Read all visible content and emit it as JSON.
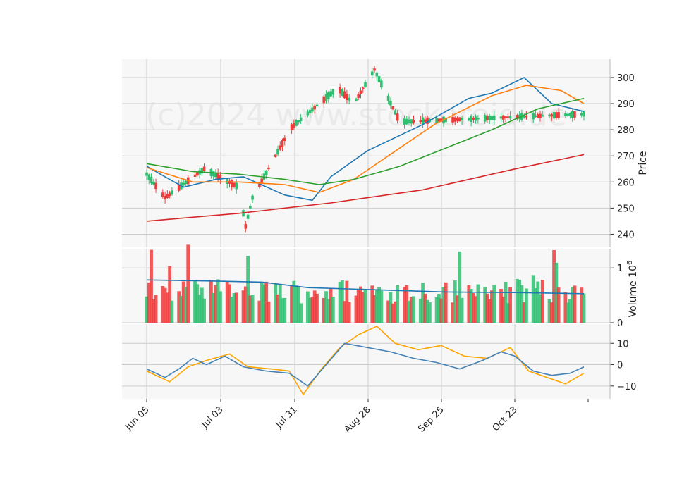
{
  "watermark": "(c)2024 www.stockoroid.de",
  "colors": {
    "up": "#2fbf71",
    "down": "#f03b3b",
    "ma_short": "#1f77b4",
    "ma_mid": "#ff7f0e",
    "ma_long": "#2ca02c",
    "ma_very_long": "#d62728",
    "volume_ma": "#1f77b4",
    "osc_fast": "#4682b4",
    "osc_slow": "#ffa500",
    "panel_bg": "#f7f7f7",
    "grid": "#cccccc"
  },
  "chart_data": {
    "type": "candlestick",
    "x_tick_labels": [
      "Jun 05",
      "Jul 03",
      "Jul 31",
      "Aug 28",
      "Sep 25",
      "Oct 23"
    ],
    "price_panel": {
      "ylabel": "Price",
      "ylim": [
        235,
        307
      ],
      "yticks": [
        240,
        250,
        260,
        270,
        280,
        290,
        300
      ],
      "key_points": [
        {
          "date": "Jun 05",
          "close": 263
        },
        {
          "date": "Jun 15",
          "close": 254
        },
        {
          "date": "Jul 10",
          "close": 265
        },
        {
          "date": "Jul 31",
          "close": 258
        },
        {
          "date": "Aug 03",
          "close": 243
        },
        {
          "date": "Aug 07",
          "close": 254
        },
        {
          "date": "Aug 17",
          "close": 270
        },
        {
          "date": "Aug 28",
          "close": 281
        },
        {
          "date": "Sep 25",
          "close": 296
        },
        {
          "date": "Oct 04",
          "close": 290
        },
        {
          "date": "Oct 16",
          "close": 303
        },
        {
          "date": "Oct 23",
          "close": 292
        },
        {
          "date": "Oct 30",
          "close": 283
        },
        {
          "date": "Nov 14",
          "close": 286
        }
      ],
      "moving_averages": [
        {
          "color_key": "ma_short",
          "points": [
            [
              0,
              266
            ],
            [
              8,
              262
            ],
            [
              16,
              258
            ],
            [
              30,
              261
            ],
            [
              42,
              262
            ],
            [
              60,
              255
            ],
            [
              72,
              253
            ],
            [
              80,
              262
            ],
            [
              96,
              272
            ],
            [
              120,
              282
            ],
            [
              140,
              292
            ],
            [
              150,
              294
            ],
            [
              164,
              300
            ],
            [
              176,
              290
            ],
            [
              190,
              287
            ]
          ]
        },
        {
          "color_key": "ma_mid",
          "points": [
            [
              0,
              265.5
            ],
            [
              20,
              260
            ],
            [
              40,
              260
            ],
            [
              60,
              259
            ],
            [
              75,
              256
            ],
            [
              90,
              261
            ],
            [
              105,
              270
            ],
            [
              125,
              282
            ],
            [
              150,
              293
            ],
            [
              165,
              297
            ],
            [
              180,
              295
            ],
            [
              190,
              290
            ]
          ]
        },
        {
          "color_key": "ma_long",
          "points": [
            [
              0,
              267
            ],
            [
              20,
              264
            ],
            [
              40,
              263
            ],
            [
              60,
              261
            ],
            [
              75,
              259
            ],
            [
              90,
              261
            ],
            [
              110,
              266
            ],
            [
              130,
              273
            ],
            [
              150,
              280
            ],
            [
              170,
              288
            ],
            [
              190,
              292
            ]
          ]
        },
        {
          "color_key": "ma_very_long",
          "points": [
            [
              0,
              245
            ],
            [
              40,
              248
            ],
            [
              80,
              252
            ],
            [
              120,
              257
            ],
            [
              160,
              265
            ],
            [
              190,
              270.5
            ]
          ]
        }
      ]
    },
    "volume_panel": {
      "ylabel": "Volume",
      "ylabel_exponent": "10^6",
      "ylim": [
        0,
        1.35
      ],
      "yticks": [
        0,
        1
      ],
      "volume_ma_points": [
        [
          0,
          0.78
        ],
        [
          30,
          0.76
        ],
        [
          50,
          0.74
        ],
        [
          70,
          0.64
        ],
        [
          100,
          0.6
        ],
        [
          130,
          0.56
        ],
        [
          160,
          0.55
        ],
        [
          190,
          0.53
        ]
      ]
    },
    "oscillator_panel": {
      "ylim": [
        -16,
        19
      ],
      "yticks": [
        -10,
        0,
        10
      ],
      "fast_points": [
        [
          0,
          -2
        ],
        [
          8,
          -6
        ],
        [
          14,
          -2
        ],
        [
          20,
          3
        ],
        [
          26,
          0
        ],
        [
          34,
          4
        ],
        [
          42,
          -1
        ],
        [
          52,
          -3
        ],
        [
          62,
          -4
        ],
        [
          70,
          -10
        ],
        [
          78,
          0
        ],
        [
          86,
          10
        ],
        [
          96,
          8
        ],
        [
          106,
          6
        ],
        [
          116,
          3
        ],
        [
          126,
          1
        ],
        [
          136,
          -2
        ],
        [
          146,
          2
        ],
        [
          154,
          6
        ],
        [
          160,
          4
        ],
        [
          168,
          -3
        ],
        [
          176,
          -5
        ],
        [
          184,
          -4
        ],
        [
          190,
          -1
        ]
      ],
      "slow_points": [
        [
          0,
          -3
        ],
        [
          10,
          -8
        ],
        [
          18,
          -1
        ],
        [
          26,
          2
        ],
        [
          36,
          5
        ],
        [
          44,
          -1
        ],
        [
          54,
          -2
        ],
        [
          62,
          -3
        ],
        [
          68,
          -14
        ],
        [
          76,
          -2
        ],
        [
          84,
          8
        ],
        [
          92,
          14
        ],
        [
          100,
          18
        ],
        [
          108,
          10
        ],
        [
          118,
          7
        ],
        [
          128,
          9
        ],
        [
          138,
          4
        ],
        [
          148,
          3
        ],
        [
          158,
          8
        ],
        [
          166,
          -3
        ],
        [
          174,
          -6
        ],
        [
          182,
          -9
        ],
        [
          190,
          -4
        ]
      ]
    }
  }
}
